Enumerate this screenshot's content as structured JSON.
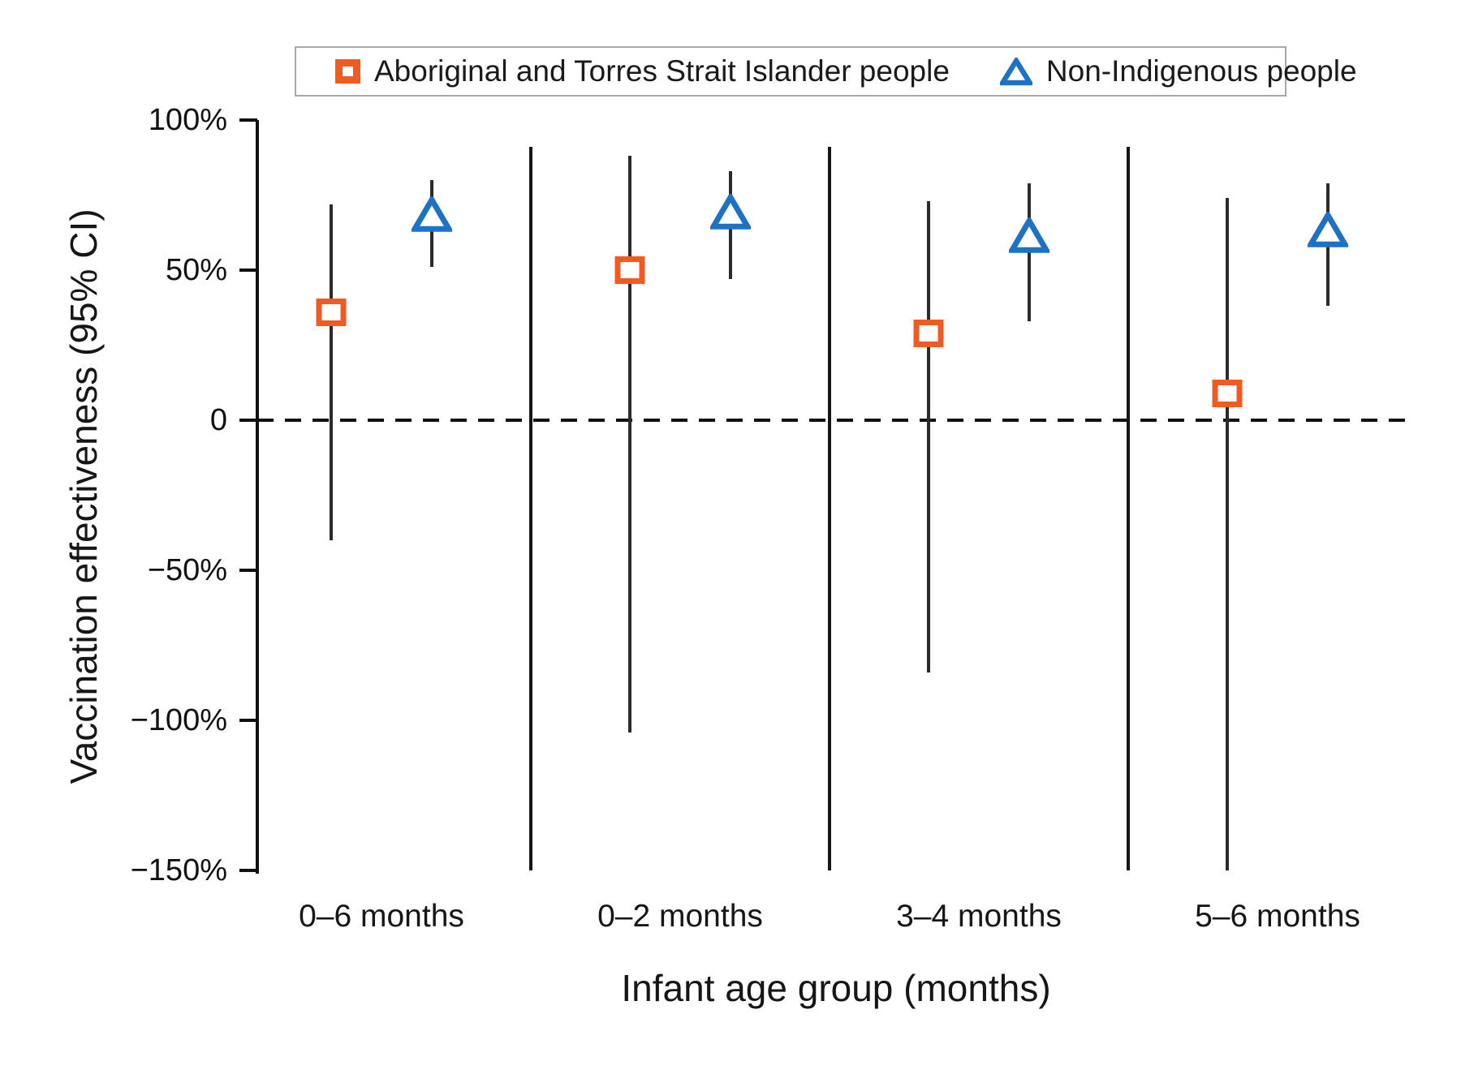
{
  "figure": {
    "legend": {
      "items": [
        {
          "label": "Aboriginal and Torres Strait Islander people",
          "marker": "open-square",
          "color": "#f15a20"
        },
        {
          "label": "Non-Indigenous people",
          "marker": "open-triangle",
          "color": "#1e72c6"
        }
      ]
    },
    "y_axis": {
      "title": "Vaccination effectiveness (95% CI)",
      "tick_labels": [
        "100%",
        "50%",
        "0",
        "−50%",
        "−100%",
        "−150%"
      ],
      "tick_values": [
        100,
        50,
        0,
        -50,
        -100,
        -150
      ]
    },
    "x_axis": {
      "title": "Infant age group (months)",
      "categories": [
        "0–6 months",
        "0–2 months",
        "3–4 months",
        "5–6 months"
      ]
    }
  },
  "chart_data": {
    "type": "scatter",
    "subtype": "point-estimates-with-95CI-error-bars",
    "categories": [
      "0–6 months",
      "0–2 months",
      "3–4 months",
      "5–6 months"
    ],
    "series": [
      {
        "name": "Aboriginal and Torres Strait Islander people",
        "marker": "open-square",
        "color": "#f15a20",
        "values": [
          36,
          50,
          29,
          9
        ],
        "ci_low": [
          -40,
          -104,
          -84,
          -150
        ],
        "ci_high": [
          72,
          88,
          73,
          74
        ],
        "ci_low_clipped_at_axis": [
          false,
          false,
          false,
          true
        ]
      },
      {
        "name": "Non-Indigenous people",
        "marker": "open-triangle",
        "color": "#1e72c6",
        "values": [
          68,
          69,
          61,
          63
        ],
        "ci_low": [
          51,
          47,
          33,
          38
        ],
        "ci_high": [
          80,
          83,
          79,
          79
        ],
        "ci_low_clipped_at_axis": [
          false,
          false,
          false,
          false
        ]
      }
    ],
    "title": "",
    "xlabel": "Infant age group (months)",
    "ylabel": "Vaccination effectiveness (95% CI)",
    "ylim": [
      -150,
      100
    ],
    "yticks": [
      100,
      50,
      0,
      -50,
      -100,
      -150
    ],
    "zero_reference_line": "dashed-horizontal-at-0",
    "group_separator_lines": {
      "present": true,
      "count": 3,
      "top_value": 91,
      "bottom_value": -150
    },
    "grid": false,
    "legend_position": "top-center-boxed",
    "error_bar_color": "#2b2b2b"
  }
}
